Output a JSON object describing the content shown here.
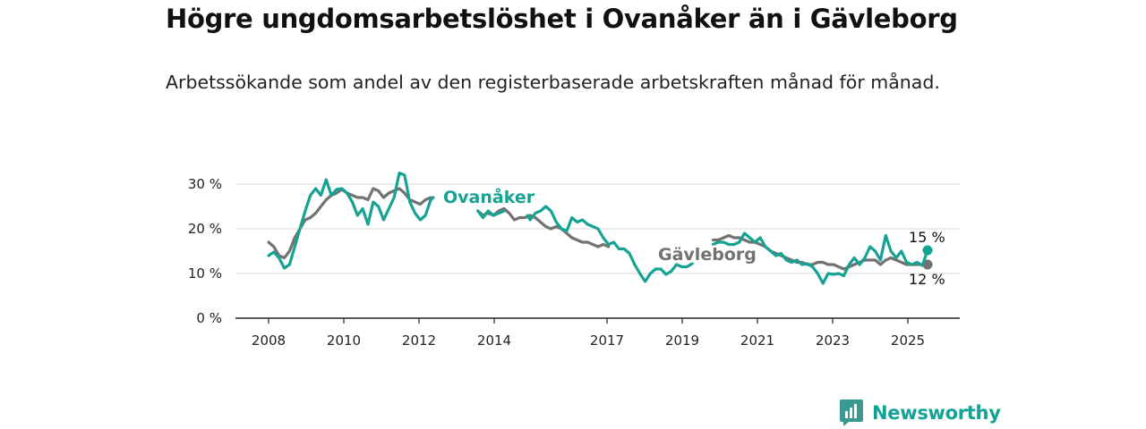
{
  "title": "Högre ungdomsarbetslöshet i Ovanåker än i Gävleborg",
  "subtitle": "Arbetssökande som andel av den registerbaserade arbetskraften månad för månad.",
  "brand": "Newsworthy",
  "chart_data": {
    "type": "line",
    "x_ticks": [
      "2008",
      "2010",
      "2012",
      "2014",
      "2017",
      "2019",
      "2021",
      "2023",
      "2025"
    ],
    "y_ticks": [
      "0 %",
      "10 %",
      "20 %",
      "30 %"
    ],
    "ylim": [
      0,
      33
    ],
    "grid": true,
    "series": [
      {
        "name": "Ovanåker",
        "color": "#16a394",
        "end_label": "15 %",
        "segments": [
          [
            [
              2008.0,
              14
            ],
            [
              2008.2,
              14.8
            ],
            [
              2008.4,
              13.5
            ],
            [
              2008.6,
              11.2
            ],
            [
              2008.8,
              12
            ],
            [
              2009.0,
              16
            ],
            [
              2009.2,
              20
            ],
            [
              2009.4,
              24
            ],
            [
              2009.6,
              27.5
            ],
            [
              2009.8,
              29
            ],
            [
              2010.0,
              27.5
            ],
            [
              2010.2,
              31
            ],
            [
              2010.4,
              27.5
            ],
            [
              2010.6,
              28.8
            ],
            [
              2010.8,
              29
            ],
            [
              2011.0,
              28
            ],
            [
              2011.2,
              26
            ],
            [
              2011.4,
              23
            ],
            [
              2011.6,
              24.5
            ],
            [
              2011.8,
              21
            ],
            [
              2012.0,
              26
            ],
            [
              2012.2,
              25
            ],
            [
              2012.4,
              22
            ],
            [
              2012.6,
              24.5
            ],
            [
              2012.8,
              27
            ],
            [
              2013.0,
              32.5
            ],
            [
              2013.2,
              32
            ],
            [
              2013.4,
              26
            ],
            [
              2013.6,
              23.5
            ],
            [
              2013.8,
              22
            ],
            [
              2014.0,
              23
            ],
            [
              2014.2,
              26.5
            ],
            [
              2014.3,
              27
            ]
          ],
          [
            [
              2016.0,
              24
            ],
            [
              2016.2,
              22.5
            ],
            [
              2016.4,
              24
            ],
            [
              2016.6,
              23
            ],
            [
              2016.8,
              23.5
            ],
            [
              2017.0,
              24
            ]
          ],
          [
            [
              2017.9,
              23
            ],
            [
              2018.0,
              22
            ],
            [
              2018.2,
              23.5
            ],
            [
              2018.4,
              24
            ],
            [
              2018.6,
              25
            ],
            [
              2018.8,
              24
            ],
            [
              2019.0,
              21.5
            ],
            [
              2019.2,
              20
            ],
            [
              2019.4,
              19.5
            ],
            [
              2019.6,
              22.5
            ],
            [
              2019.8,
              21.5
            ],
            [
              2020.0,
              22
            ],
            [
              2020.2,
              21
            ],
            [
              2020.4,
              20.5
            ],
            [
              2020.6,
              20
            ],
            [
              2020.8,
              18
            ],
            [
              2021.0,
              16.5
            ],
            [
              2021.2,
              17
            ],
            [
              2021.4,
              15.5
            ],
            [
              2021.6,
              15.5
            ],
            [
              2021.8,
              14.5
            ],
            [
              2022.0,
              12
            ],
            [
              2022.2,
              10
            ],
            [
              2022.4,
              8.2
            ],
            [
              2022.6,
              10
            ],
            [
              2022.8,
              11
            ],
            [
              2023.0,
              11
            ],
            [
              2023.2,
              9.8
            ],
            [
              2023.4,
              10.5
            ],
            [
              2023.6,
              12
            ],
            [
              2023.8,
              11.5
            ],
            [
              2024.0,
              11.5
            ],
            [
              2024.2,
              12.2
            ]
          ],
          [
            [
              2025.0,
              16.5
            ],
            [
              2025.2,
              17
            ],
            [
              2025.4,
              17
            ],
            [
              2025.6,
              16.5
            ],
            [
              2025.8,
              16.5
            ],
            [
              2026.0,
              17
            ],
            [
              2026.2,
              19
            ],
            [
              2026.4,
              18
            ],
            [
              2026.6,
              17
            ],
            [
              2026.8,
              18
            ],
            [
              2027.0,
              16
            ],
            [
              2027.2,
              15
            ],
            [
              2027.4,
              14
            ],
            [
              2027.6,
              14.5
            ],
            [
              2027.8,
              13
            ],
            [
              2028.0,
              12.5
            ],
            [
              2028.2,
              13
            ],
            [
              2028.4,
              12
            ],
            [
              2028.6,
              12.2
            ],
            [
              2028.8,
              11.5
            ],
            [
              2029.0,
              10
            ],
            [
              2029.2,
              7.8
            ],
            [
              2029.4,
              10
            ],
            [
              2029.6,
              9.8
            ],
            [
              2029.8,
              10
            ],
            [
              2030.0,
              9.5
            ],
            [
              2030.2,
              12
            ],
            [
              2030.4,
              13.5
            ],
            [
              2030.6,
              12
            ],
            [
              2030.8,
              13.5
            ],
            [
              2031.0,
              16
            ],
            [
              2031.2,
              15
            ],
            [
              2031.4,
              13
            ],
            [
              2031.6,
              18.5
            ],
            [
              2031.8,
              15
            ],
            [
              2032.0,
              13.5
            ],
            [
              2032.2,
              15
            ],
            [
              2032.4,
              12.5
            ],
            [
              2032.6,
              12
            ],
            [
              2032.8,
              12.5
            ],
            [
              2033.0,
              11.8
            ],
            [
              2033.2,
              15.2
            ]
          ]
        ]
      },
      {
        "name": "Gävleborg",
        "color": "#727272",
        "end_label": "12 %",
        "segments": [
          [
            [
              2008.0,
              17
            ],
            [
              2008.2,
              16
            ],
            [
              2008.4,
              14
            ],
            [
              2008.6,
              13.5
            ],
            [
              2008.8,
              15
            ],
            [
              2009.0,
              18
            ],
            [
              2009.2,
              20
            ],
            [
              2009.4,
              22
            ],
            [
              2009.6,
              22.5
            ],
            [
              2009.8,
              23.5
            ],
            [
              2010.0,
              25
            ],
            [
              2010.2,
              26.5
            ],
            [
              2010.4,
              27.5
            ],
            [
              2010.6,
              28
            ],
            [
              2010.8,
              28.8
            ],
            [
              2011.0,
              28
            ],
            [
              2011.2,
              27.5
            ],
            [
              2011.4,
              27
            ],
            [
              2011.6,
              27
            ],
            [
              2011.8,
              26.5
            ],
            [
              2012.0,
              29
            ],
            [
              2012.2,
              28.5
            ],
            [
              2012.4,
              27
            ],
            [
              2012.6,
              28
            ],
            [
              2012.8,
              28.5
            ],
            [
              2013.0,
              29
            ],
            [
              2013.2,
              28
            ],
            [
              2013.4,
              26.5
            ],
            [
              2013.6,
              26
            ],
            [
              2013.8,
              25.5
            ],
            [
              2014.0,
              26.5
            ],
            [
              2014.2,
              27
            ]
          ],
          [
            [
              2016.0,
              24
            ],
            [
              2016.2,
              23
            ],
            [
              2016.4,
              23.5
            ],
            [
              2016.6,
              23
            ],
            [
              2016.8,
              24
            ],
            [
              2017.0,
              24.5
            ],
            [
              2017.2,
              23.5
            ],
            [
              2017.4,
              22
            ],
            [
              2017.6,
              22.5
            ],
            [
              2017.8,
              22.5
            ],
            [
              2018.0,
              23
            ],
            [
              2018.2,
              22.5
            ],
            [
              2018.4,
              21.5
            ],
            [
              2018.6,
              20.5
            ],
            [
              2018.8,
              20
            ],
            [
              2019.0,
              20.5
            ],
            [
              2019.2,
              20
            ],
            [
              2019.4,
              19
            ],
            [
              2019.6,
              18
            ],
            [
              2019.8,
              17.5
            ],
            [
              2020.0,
              17
            ],
            [
              2020.2,
              17
            ],
            [
              2020.4,
              16.5
            ],
            [
              2020.6,
              16
            ],
            [
              2020.8,
              16.5
            ],
            [
              2021.0,
              16
            ]
          ],
          [
            [
              2025.0,
              17.5
            ],
            [
              2025.2,
              17.5
            ],
            [
              2025.4,
              18
            ],
            [
              2025.6,
              18.5
            ],
            [
              2025.8,
              18
            ],
            [
              2026.0,
              18
            ],
            [
              2026.2,
              17.5
            ],
            [
              2026.4,
              17
            ],
            [
              2026.6,
              17
            ],
            [
              2026.8,
              16.5
            ],
            [
              2027.0,
              16
            ],
            [
              2027.2,
              15
            ],
            [
              2027.4,
              14.5
            ],
            [
              2027.6,
              14
            ],
            [
              2027.8,
              13.5
            ],
            [
              2028.0,
              13
            ],
            [
              2028.2,
              12.5
            ],
            [
              2028.4,
              12.5
            ],
            [
              2028.6,
              12
            ],
            [
              2028.8,
              12
            ],
            [
              2029.0,
              12.5
            ],
            [
              2029.2,
              12.5
            ],
            [
              2029.4,
              12
            ],
            [
              2029.6,
              12
            ],
            [
              2029.8,
              11.5
            ],
            [
              2030.0,
              11
            ],
            [
              2030.2,
              11.5
            ],
            [
              2030.4,
              12
            ],
            [
              2030.6,
              12.5
            ],
            [
              2030.8,
              13
            ],
            [
              2031.0,
              13
            ],
            [
              2031.2,
              13
            ],
            [
              2031.4,
              12
            ],
            [
              2031.6,
              13
            ],
            [
              2031.8,
              13.5
            ],
            [
              2032.0,
              13
            ],
            [
              2032.2,
              12.5
            ],
            [
              2032.4,
              12
            ],
            [
              2032.6,
              12
            ],
            [
              2032.8,
              12
            ],
            [
              2033.0,
              12
            ],
            [
              2033.2,
              12
            ]
          ]
        ]
      }
    ]
  }
}
